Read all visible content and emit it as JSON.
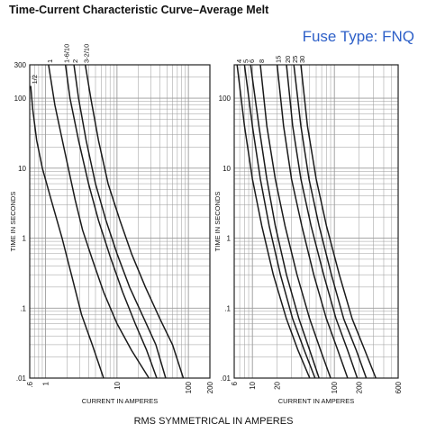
{
  "header": {
    "title": "Time-Current Characteristic Curve–Average Melt",
    "subtitle": "Fuse Type: FNQ"
  },
  "footer": {
    "caption": "RMS SYMMETRICAL IN AMPERES"
  },
  "colors": {
    "curve": "#1a1a1a",
    "grid": "#9a9a9a",
    "frame": "#222222",
    "subtitle": "#2e60c8"
  },
  "chart_data": [
    {
      "type": "line",
      "title": "",
      "xlabel": "CURRENT IN AMPERES",
      "ylabel": "TIME IN SECONDS",
      "xscale": "log",
      "yscale": "log",
      "xlim": [
        0.6,
        200
      ],
      "ylim": [
        0.01,
        300
      ],
      "grid": true,
      "x_ticks": [
        ".6",
        "1",
        "10",
        "100",
        "200"
      ],
      "y_ticks": [
        "300",
        "100",
        "10",
        "1",
        ".1",
        ".01"
      ],
      "series": [
        {
          "name": "1/2",
          "points": [
            [
              0.62,
              150
            ],
            [
              0.66,
              70
            ],
            [
              0.75,
              25
            ],
            [
              0.9,
              10
            ],
            [
              1.2,
              3.5
            ],
            [
              1.7,
              1
            ],
            [
              2.3,
              0.3
            ],
            [
              3.2,
              0.08
            ],
            [
              4.5,
              0.03
            ],
            [
              6.5,
              0.01
            ]
          ]
        },
        {
          "name": "1",
          "points": [
            [
              1.1,
              300
            ],
            [
              1.35,
              80
            ],
            [
              1.8,
              20
            ],
            [
              2.6,
              3.5
            ],
            [
              3.3,
              1.3
            ],
            [
              4.5,
              0.5
            ],
            [
              6.5,
              0.17
            ],
            [
              10,
              0.06
            ],
            [
              16,
              0.025
            ],
            [
              28,
              0.01
            ]
          ]
        },
        {
          "name": "1-6/10",
          "points": [
            [
              1.9,
              300
            ],
            [
              2.2,
              100
            ],
            [
              2.9,
              25
            ],
            [
              4,
              6
            ],
            [
              5.5,
              1.8
            ],
            [
              8,
              0.55
            ],
            [
              12,
              0.17
            ],
            [
              18,
              0.06
            ],
            [
              26,
              0.025
            ],
            [
              36,
              0.01
            ]
          ]
        },
        {
          "name": "2",
          "points": [
            [
              2.5,
              300
            ],
            [
              2.9,
              100
            ],
            [
              3.7,
              25
            ],
            [
              5,
              6
            ],
            [
              7,
              1.8
            ],
            [
              10,
              0.6
            ],
            [
              15,
              0.2
            ],
            [
              24,
              0.07
            ],
            [
              35,
              0.03
            ],
            [
              48,
              0.01
            ]
          ]
        },
        {
          "name": "3-2/10",
          "points": [
            [
              3.6,
              300
            ],
            [
              4.3,
              100
            ],
            [
              5.5,
              25
            ],
            [
              7.5,
              6
            ],
            [
              11,
              1.8
            ],
            [
              16,
              0.6
            ],
            [
              25,
              0.2
            ],
            [
              40,
              0.07
            ],
            [
              60,
              0.03
            ],
            [
              85,
              0.01
            ]
          ]
        }
      ]
    },
    {
      "type": "line",
      "title": "",
      "xlabel": "CURRENT IN AMPERES",
      "ylabel": "TIME IN SECONDS",
      "xscale": "log",
      "yscale": "log",
      "xlim": [
        6,
        600
      ],
      "ylim": [
        0.01,
        300
      ],
      "grid": true,
      "x_ticks": [
        "6",
        "10",
        "20",
        "100",
        "200",
        "600"
      ],
      "y_ticks": [
        "100",
        "10",
        "1",
        ".1",
        ".01"
      ],
      "series": [
        {
          "name": "4",
          "points": [
            [
              6.5,
              300
            ],
            [
              8,
              40
            ],
            [
              10,
              7
            ],
            [
              13,
              1.5
            ],
            [
              18,
              0.3
            ],
            [
              26,
              0.07
            ],
            [
              36,
              0.025
            ],
            [
              50,
              0.01
            ]
          ]
        },
        {
          "name": "5",
          "points": [
            [
              8,
              300
            ],
            [
              10,
              40
            ],
            [
              12.5,
              7
            ],
            [
              16,
              1.5
            ],
            [
              22,
              0.3
            ],
            [
              31,
              0.07
            ],
            [
              43,
              0.025
            ],
            [
              58,
              0.01
            ]
          ]
        },
        {
          "name": "6",
          "points": [
            [
              9.5,
              300
            ],
            [
              12,
              40
            ],
            [
              15,
              7
            ],
            [
              19,
              1.5
            ],
            [
              26,
              0.3
            ],
            [
              37,
              0.07
            ],
            [
              50,
              0.025
            ],
            [
              65,
              0.01
            ]
          ]
        },
        {
          "name": "8",
          "points": [
            [
              12.5,
              300
            ],
            [
              15,
              40
            ],
            [
              19,
              7
            ],
            [
              25,
              1.5
            ],
            [
              35,
              0.3
            ],
            [
              50,
              0.07
            ],
            [
              68,
              0.025
            ],
            [
              90,
              0.01
            ]
          ]
        },
        {
          "name": "15",
          "points": [
            [
              20,
              300
            ],
            [
              24,
              40
            ],
            [
              30,
              7
            ],
            [
              40,
              1.5
            ],
            [
              56,
              0.3
            ],
            [
              80,
              0.07
            ],
            [
              110,
              0.025
            ],
            [
              145,
              0.01
            ]
          ]
        },
        {
          "name": "20",
          "points": [
            [
              26,
              300
            ],
            [
              31,
              40
            ],
            [
              39,
              7
            ],
            [
              52,
              1.5
            ],
            [
              74,
              0.3
            ],
            [
              105,
              0.07
            ],
            [
              145,
              0.025
            ],
            [
              190,
              0.01
            ]
          ]
        },
        {
          "name": "25",
          "points": [
            [
              32,
              300
            ],
            [
              39,
              40
            ],
            [
              49,
              7
            ],
            [
              65,
              1.5
            ],
            [
              92,
              0.3
            ],
            [
              130,
              0.07
            ],
            [
              185,
              0.025
            ],
            [
              245,
              0.01
            ]
          ]
        },
        {
          "name": "30",
          "points": [
            [
              39,
              300
            ],
            [
              47,
              40
            ],
            [
              60,
              7
            ],
            [
              80,
              1.5
            ],
            [
              115,
              0.3
            ],
            [
              165,
              0.07
            ],
            [
              235,
              0.025
            ],
            [
              320,
              0.01
            ]
          ]
        }
      ]
    }
  ]
}
